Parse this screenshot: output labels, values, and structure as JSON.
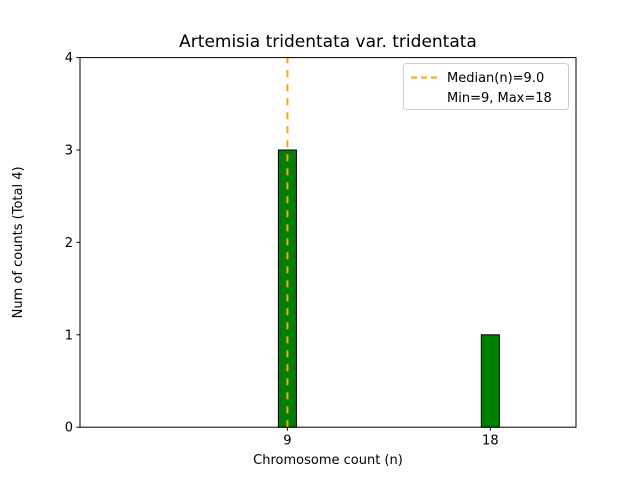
{
  "chart_data": {
    "type": "bar",
    "title": "Artemisia tridentata var. tridentata",
    "xlabel": "Chromosome count (n)",
    "ylabel": "Num of counts      (Total 4)",
    "categories": [
      9,
      18
    ],
    "values": [
      3,
      1
    ],
    "total_counts": 4,
    "bar_color": "#008000",
    "bar_edge_color": "#000000",
    "bar_width_units": 0.8,
    "median_line": {
      "x": 9,
      "color": "#FFA500",
      "style": "dashed",
      "label": "Median(n)=9.0"
    },
    "xlim": [
      -0.2,
      21.8
    ],
    "ylim": [
      0,
      4
    ],
    "xticks": [
      9,
      18
    ],
    "yticks": [
      0,
      1,
      2,
      3,
      4
    ],
    "grid": false,
    "legend": {
      "position": "upper right",
      "entries": [
        "Median(n)=9.0",
        "Min=9, Max=18"
      ]
    }
  }
}
